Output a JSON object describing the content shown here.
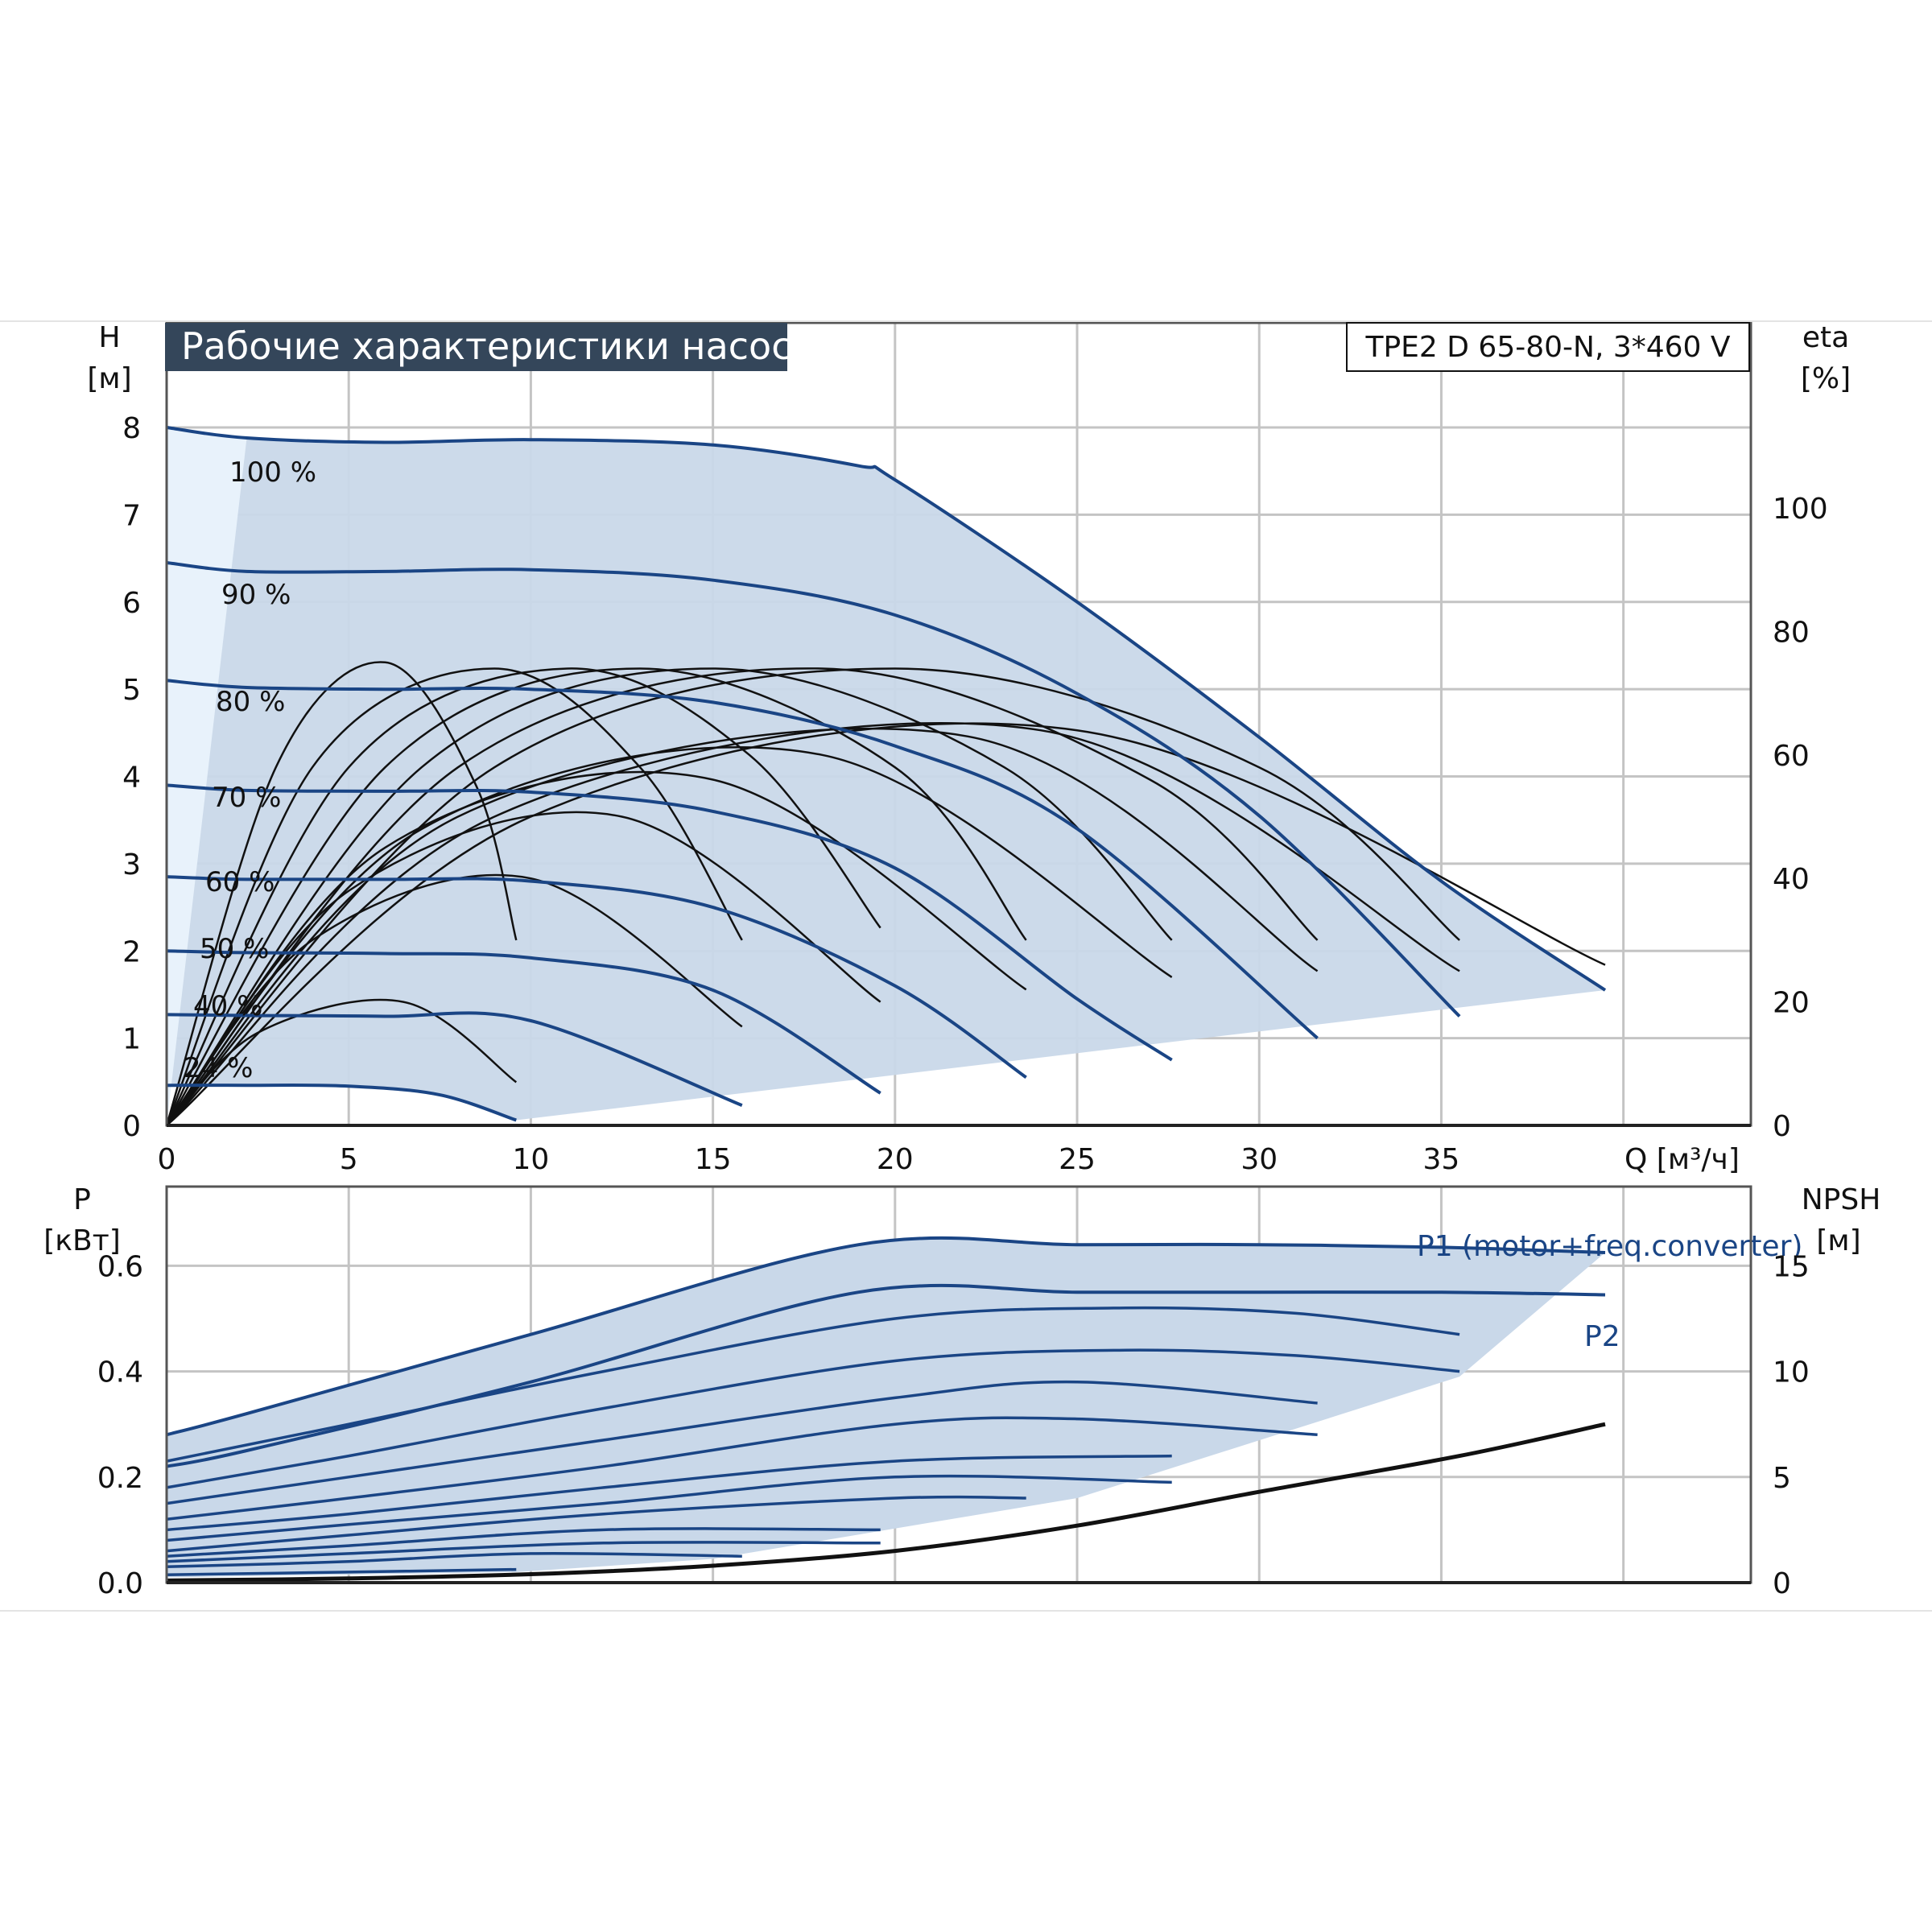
{
  "title": "Рабочие характеристики насоса",
  "model": "TPE2 D 65-80-N, 3*460 V",
  "colors": {
    "curve": "#1a4585",
    "fill": "#c9d8e9",
    "fill_light": "#e8f2fb",
    "eff": "#111111",
    "grid": "#c4c4c4",
    "title_bg": "#34465a"
  },
  "chart_data": [
    {
      "type": "line",
      "panel": "head",
      "y_axis_label": "H",
      "y_axis_unit": "[м]",
      "y2_axis_label": "eta",
      "y2_axis_unit": "[%]",
      "x_axis_label": "Q [м³/ч]",
      "xlim": [
        0,
        43.5
      ],
      "ylim": [
        0,
        9.2
      ],
      "y2lim": [
        0,
        130
      ],
      "x_ticks": [
        "0",
        "5",
        "10",
        "15",
        "20",
        "25",
        "30",
        "35"
      ],
      "y_ticks": [
        "0",
        "1",
        "2",
        "3",
        "4",
        "5",
        "6",
        "7",
        "8"
      ],
      "y2_ticks": [
        "0",
        "20",
        "40",
        "60",
        "80",
        "100"
      ],
      "grid": true,
      "series": [
        {
          "name": "100 %",
          "x": [
            0,
            2.2,
            6,
            10,
            15,
            19,
            20,
            25,
            30,
            35,
            39.5
          ],
          "y": [
            8.0,
            7.88,
            7.83,
            7.86,
            7.8,
            7.56,
            7.4,
            6.0,
            4.45,
            2.8,
            1.55
          ]
        },
        {
          "name": "90 %",
          "x": [
            0,
            2.2,
            6,
            10,
            15,
            20,
            25,
            30,
            35.5
          ],
          "y": [
            6.45,
            6.35,
            6.35,
            6.37,
            6.25,
            5.85,
            4.95,
            3.55,
            1.25
          ]
        },
        {
          "name": "80 %",
          "x": [
            0,
            2.2,
            6,
            10,
            15,
            20,
            25,
            31.6
          ],
          "y": [
            5.1,
            5.02,
            5.0,
            5.0,
            4.85,
            4.35,
            3.4,
            1.0
          ]
        },
        {
          "name": "70 %",
          "x": [
            0,
            2.2,
            6,
            10,
            15,
            20,
            25,
            27.6
          ],
          "y": [
            3.9,
            3.84,
            3.83,
            3.82,
            3.6,
            2.95,
            1.45,
            0.75
          ]
        },
        {
          "name": "60 %",
          "x": [
            0,
            2.2,
            6,
            10,
            15,
            20,
            23.6
          ],
          "y": [
            2.85,
            2.82,
            2.82,
            2.8,
            2.5,
            1.6,
            0.55
          ]
        },
        {
          "name": "50 %",
          "x": [
            0,
            2.2,
            6,
            10,
            15,
            19.6
          ],
          "y": [
            2.0,
            1.98,
            1.97,
            1.92,
            1.55,
            0.37
          ]
        },
        {
          "name": "40 %",
          "x": [
            0,
            2.2,
            6,
            10,
            15.8
          ],
          "y": [
            1.27,
            1.26,
            1.25,
            1.2,
            0.23
          ]
        },
        {
          "name": "24 %",
          "x": [
            0,
            2.2,
            5,
            7.5,
            9.6
          ],
          "y": [
            0.46,
            0.46,
            0.45,
            0.35,
            0.06
          ]
        }
      ],
      "efficiency_curves": [
        {
          "x": [
            0,
            3,
            6,
            8.5,
            9.6
          ],
          "y": [
            0,
            58,
            75,
            55,
            30
          ]
        },
        {
          "x": [
            0,
            4,
            9,
            13,
            15.8
          ],
          "y": [
            0,
            58,
            74,
            58,
            30
          ]
        },
        {
          "x": [
            0,
            5,
            11,
            16,
            19.6
          ],
          "y": [
            0,
            58,
            74,
            60,
            32
          ]
        },
        {
          "x": [
            0,
            6,
            13,
            20,
            23.6
          ],
          "y": [
            0,
            58,
            74,
            58,
            30
          ]
        },
        {
          "x": [
            0,
            7,
            15,
            23,
            27.6
          ],
          "y": [
            0,
            58,
            74,
            58,
            30
          ]
        },
        {
          "x": [
            0,
            8,
            18,
            27,
            31.6
          ],
          "y": [
            0,
            58,
            74,
            56,
            30
          ]
        },
        {
          "x": [
            0,
            9,
            20,
            30,
            35.5
          ],
          "y": [
            0,
            58,
            74,
            58,
            30
          ]
        },
        {
          "x": [
            0,
            2.5,
            6.5,
            9.6
          ],
          "y": [
            0,
            15,
            20,
            7
          ]
        },
        {
          "x": [
            0,
            4,
            10,
            15.8
          ],
          "y": [
            0,
            30,
            40,
            16
          ]
        },
        {
          "x": [
            0,
            5,
            12.5,
            19.6
          ],
          "y": [
            0,
            38,
            50,
            20
          ]
        },
        {
          "x": [
            0,
            6,
            15,
            23.6
          ],
          "y": [
            0,
            45,
            56,
            22
          ]
        },
        {
          "x": [
            0,
            7,
            18,
            27.6
          ],
          "y": [
            0,
            48,
            60,
            24
          ]
        },
        {
          "x": [
            0,
            8,
            22,
            31.6
          ],
          "y": [
            0,
            50,
            63,
            25
          ]
        },
        {
          "x": [
            0,
            9,
            24,
            35.5
          ],
          "y": [
            0,
            50,
            64,
            25
          ]
        },
        {
          "x": [
            0,
            10,
            25,
            39.5
          ],
          "y": [
            0,
            50,
            64,
            26
          ]
        }
      ]
    },
    {
      "type": "line",
      "panel": "power",
      "y_axis_label": "P",
      "y_axis_unit": "[кВт]",
      "y2_axis_label": "NPSH",
      "y2_axis_unit": "[м]",
      "xlim": [
        0,
        43.5
      ],
      "ylim": [
        0,
        0.75
      ],
      "y2lim": [
        0,
        18.75
      ],
      "y_ticks": [
        "0.0",
        "0.2",
        "0.4",
        "0.6"
      ],
      "y2_ticks": [
        "0",
        "5",
        "10",
        "15"
      ],
      "grid": true,
      "series": [
        {
          "name": "P1 (motor+freq.converter)",
          "x": [
            0,
            2.2,
            10,
            19,
            25,
            30,
            35,
            39.5
          ],
          "y": [
            0.28,
            0.32,
            0.47,
            0.64,
            0.64,
            0.64,
            0.635,
            0.625
          ]
        },
        {
          "name": "P2",
          "x": [
            0,
            2.2,
            10,
            19,
            25,
            30,
            35,
            39.5
          ],
          "y": [
            0.22,
            0.25,
            0.38,
            0.55,
            0.55,
            0.55,
            0.55,
            0.545
          ]
        },
        {
          "x": [
            0,
            5,
            12,
            20,
            26,
            31,
            35.5
          ],
          "y": [
            0.23,
            0.3,
            0.4,
            0.5,
            0.52,
            0.51,
            0.47
          ]
        },
        {
          "x": [
            0,
            5,
            12,
            20,
            26,
            31,
            35.5
          ],
          "y": [
            0.18,
            0.24,
            0.33,
            0.42,
            0.44,
            0.43,
            0.4
          ]
        },
        {
          "x": [
            0,
            5,
            12,
            20,
            25,
            31.6
          ],
          "y": [
            0.15,
            0.2,
            0.27,
            0.35,
            0.38,
            0.34
          ]
        },
        {
          "x": [
            0,
            5,
            12,
            20,
            25,
            31.6
          ],
          "y": [
            0.12,
            0.16,
            0.22,
            0.3,
            0.31,
            0.28
          ]
        },
        {
          "x": [
            0,
            5,
            12,
            20,
            27.6
          ],
          "y": [
            0.1,
            0.13,
            0.18,
            0.23,
            0.24
          ]
        },
        {
          "x": [
            0,
            5,
            12,
            20,
            27.6
          ],
          "y": [
            0.08,
            0.11,
            0.15,
            0.2,
            0.19
          ]
        },
        {
          "x": [
            0,
            5,
            12,
            20,
            23.6
          ],
          "y": [
            0.06,
            0.09,
            0.13,
            0.16,
            0.16
          ]
        },
        {
          "x": [
            0,
            5,
            12,
            19.6
          ],
          "y": [
            0.05,
            0.07,
            0.1,
            0.1
          ]
        },
        {
          "x": [
            0,
            5,
            12,
            19.6
          ],
          "y": [
            0.04,
            0.055,
            0.075,
            0.075
          ]
        },
        {
          "x": [
            0,
            5,
            10,
            15.8
          ],
          "y": [
            0.03,
            0.04,
            0.055,
            0.05
          ]
        },
        {
          "x": [
            0,
            5,
            9.6
          ],
          "y": [
            0.015,
            0.02,
            0.025
          ]
        }
      ],
      "npsh_curve": {
        "x": [
          0,
          5,
          10,
          15,
          20,
          25,
          30,
          35.5,
          39.5
        ],
        "y": [
          0.1,
          0.2,
          0.4,
          0.8,
          1.5,
          2.7,
          4.3,
          6.0,
          7.5
        ]
      }
    }
  ]
}
